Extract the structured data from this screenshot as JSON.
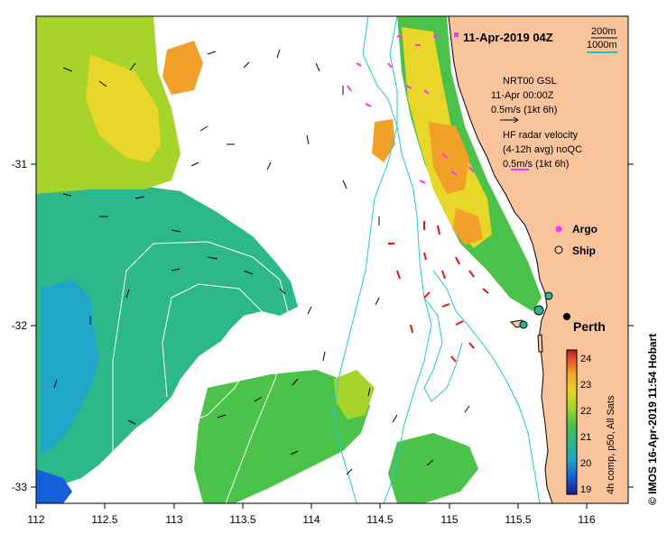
{
  "map": {
    "title": "11-Apr-2019 04Z",
    "lon_ticks": [
      "112",
      "112.5",
      "113",
      "113.5",
      "114",
      "114.5",
      "115",
      "115.5",
      "116"
    ],
    "lat_ticks": [
      "-31",
      "-32",
      "-33"
    ],
    "lon_range": [
      112,
      116.3
    ],
    "lat_range": [
      -33.1,
      -30.1
    ],
    "colors": {
      "land": "#f9c49b",
      "coast": "#000000",
      "isobath": "#27c7d8",
      "model_vector": "#000000",
      "radar_vector": "#e8141a",
      "argo": "#ff33ff",
      "sst_contour": "#ffffff"
    }
  },
  "scale_bar": {
    "label_200m": "200m",
    "label_1000m": "1000m",
    "color_1000m": "#19c2c2"
  },
  "legend": {
    "model_title": "NRT00 GSL",
    "model_time": "11-Apr 00:00Z",
    "model_scale": "0.5m/s (1kt 6h)",
    "radar_title": "HF radar velocity",
    "radar_note": "(4-12h avg) noQC",
    "radar_scale": "0.5m/s (1kt 6h)",
    "argo_label": "Argo",
    "ship_label": "Ship"
  },
  "place": {
    "city": "Perth"
  },
  "colorbar": {
    "ticks": [
      "24",
      "23",
      "22",
      "21",
      "20",
      "19"
    ],
    "range": [
      19,
      24.5
    ],
    "caption": "4h comp, p50, All Sats",
    "stops": [
      "#1e1e87",
      "#1460d8",
      "#1fa6c8",
      "#2db88b",
      "#4bc24a",
      "#a6d42a",
      "#e8d628",
      "#f2a128",
      "#e7562a",
      "#b3211f"
    ]
  },
  "credit": "© IMOS 16-Apr-2019 11:54 Hobart"
}
